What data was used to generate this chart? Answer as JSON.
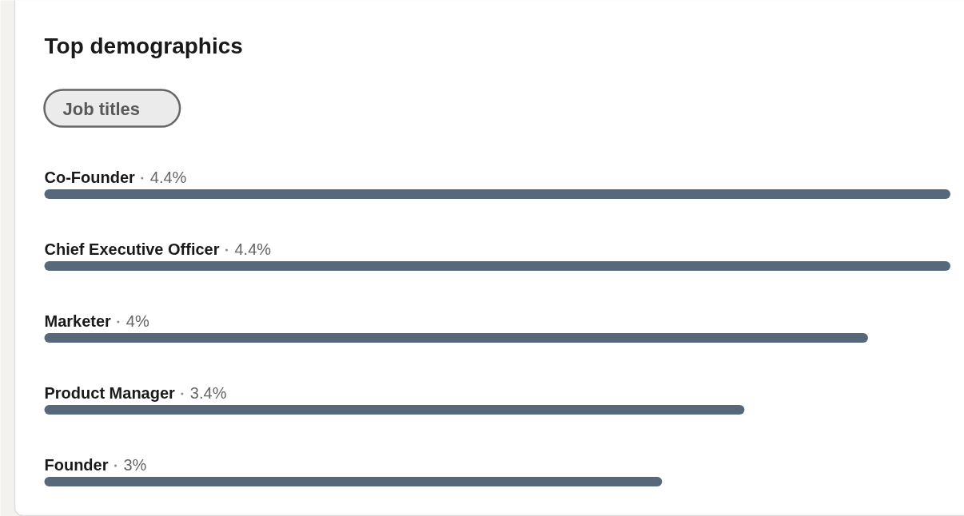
{
  "chart_data": {
    "type": "bar",
    "orientation": "horizontal",
    "title": "Top demographics",
    "subtitle": "Job titles",
    "categories": [
      "Co-Founder",
      "Chief Executive Officer",
      "Marketer",
      "Product Manager",
      "Founder"
    ],
    "values": [
      4.4,
      4.4,
      4,
      3.4,
      3
    ],
    "value_labels": [
      "4.4%",
      "4.4%",
      "4%",
      "3.4%",
      "3%"
    ],
    "color": "#56687a"
  }
}
